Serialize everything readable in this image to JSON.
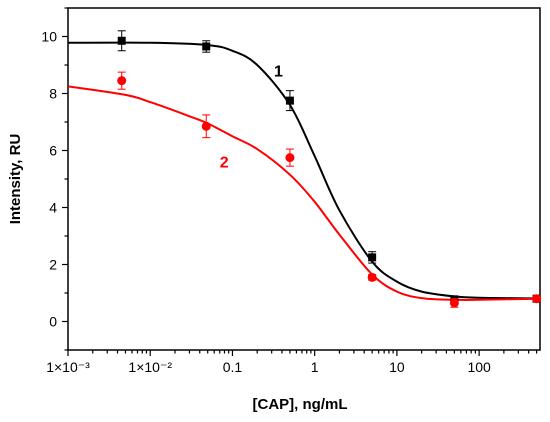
{
  "chart_data": {
    "type": "scatter",
    "xlabel": "[CAP], ng/mL",
    "ylabel": "Intensity, RU",
    "x_scale": "log",
    "xlim": [
      0.001,
      550
    ],
    "ylim": [
      -1,
      11
    ],
    "x_ticks": [
      {
        "value": 0.001,
        "label": "1×10⁻³"
      },
      {
        "value": 0.01,
        "label": "1×10⁻²"
      },
      {
        "value": 0.1,
        "label": "0.1"
      },
      {
        "value": 1,
        "label": "1"
      },
      {
        "value": 10,
        "label": "10"
      },
      {
        "value": 100,
        "label": "100"
      }
    ],
    "y_ticks": [
      0,
      2,
      4,
      6,
      8,
      10
    ],
    "grid": false,
    "series": [
      {
        "name": "1",
        "color": "#000000",
        "marker": "square",
        "x": [
          0.0045,
          0.048,
          0.5,
          5,
          50,
          500
        ],
        "y": [
          9.85,
          9.65,
          7.75,
          2.25,
          0.75,
          0.8
        ],
        "error": [
          0.35,
          0.2,
          0.35,
          0.2,
          0.15,
          0.1
        ],
        "fit": [
          [
            0.001,
            9.78
          ],
          [
            0.01,
            9.78
          ],
          [
            0.05,
            9.7
          ],
          [
            0.1,
            9.5
          ],
          [
            0.2,
            9.0
          ],
          [
            0.5,
            7.6
          ],
          [
            1,
            5.8
          ],
          [
            2,
            3.9
          ],
          [
            5,
            2.1
          ],
          [
            10,
            1.4
          ],
          [
            20,
            1.05
          ],
          [
            50,
            0.88
          ],
          [
            100,
            0.83
          ],
          [
            550,
            0.81
          ]
        ]
      },
      {
        "name": "2",
        "color": "#ff0000",
        "marker": "circle",
        "x": [
          0.0045,
          0.048,
          0.5,
          5,
          50,
          500
        ],
        "y": [
          8.45,
          6.85,
          5.75,
          1.55,
          0.65,
          0.8
        ],
        "error": [
          0.3,
          0.4,
          0.3,
          0.1,
          0.15,
          0.1
        ],
        "fit": [
          [
            0.001,
            8.25
          ],
          [
            0.005,
            7.95
          ],
          [
            0.01,
            7.7
          ],
          [
            0.03,
            7.2
          ],
          [
            0.05,
            6.95
          ],
          [
            0.1,
            6.5
          ],
          [
            0.2,
            6.05
          ],
          [
            0.5,
            5.15
          ],
          [
            1,
            4.2
          ],
          [
            2,
            3.05
          ],
          [
            5,
            1.65
          ],
          [
            10,
            1.05
          ],
          [
            20,
            0.82
          ],
          [
            50,
            0.76
          ],
          [
            100,
            0.76
          ],
          [
            550,
            0.8
          ]
        ]
      }
    ]
  }
}
